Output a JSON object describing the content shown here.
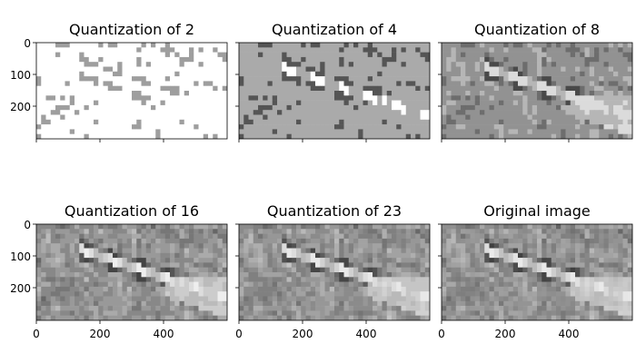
{
  "figure": {
    "panels": [
      {
        "title": "Quantization of 2",
        "levels": 2,
        "y_ticks": [
          "0",
          "100",
          "200"
        ],
        "x_ticks": [
          "",
          "",
          ""
        ]
      },
      {
        "title": "Quantization of 4",
        "levels": 4,
        "y_ticks": [
          "",
          "",
          ""
        ],
        "x_ticks": [
          "",
          "",
          ""
        ]
      },
      {
        "title": "Quantization of 8",
        "levels": 8,
        "y_ticks": [
          "",
          "",
          ""
        ],
        "x_ticks": [
          "",
          "",
          ""
        ]
      },
      {
        "title": "Quantization of 16",
        "levels": 16,
        "y_ticks": [
          "0",
          "100",
          "200"
        ],
        "x_ticks": [
          "0",
          "200",
          "400"
        ]
      },
      {
        "title": "Quantization of 23",
        "levels": 23,
        "y_ticks": [
          "",
          "",
          ""
        ],
        "x_ticks": [
          "0",
          "200",
          "400"
        ]
      },
      {
        "title": "Original image",
        "levels": 0,
        "y_ticks": [
          "",
          "",
          ""
        ],
        "x_ticks": [
          "0",
          "200",
          "400"
        ]
      }
    ],
    "tick_values": {
      "x": [
        0,
        200,
        400
      ],
      "y": [
        0,
        100,
        200
      ]
    },
    "image_extent": {
      "width": 600,
      "height": 300
    },
    "colors": {
      "frame": "#000000",
      "background": "#ffffff"
    }
  }
}
